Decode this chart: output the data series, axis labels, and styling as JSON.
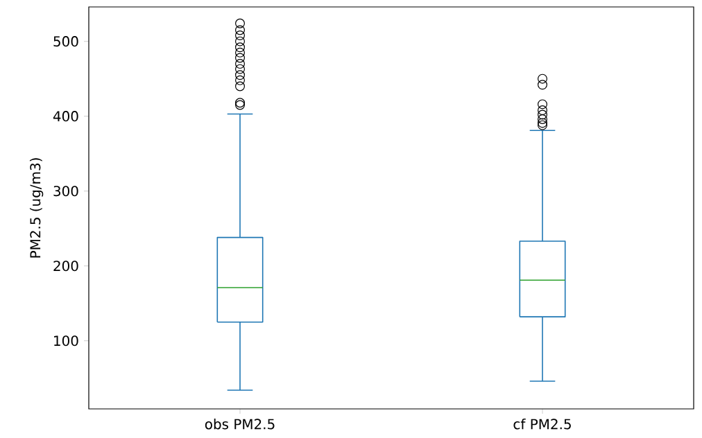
{
  "chart_data": {
    "type": "box",
    "ylabel": "PM2.5 (ug/m3)",
    "categories": [
      "obs PM2.5",
      "cf PM2.5"
    ],
    "color": "#1f77b4",
    "boxes": [
      {
        "low": 34,
        "q1": 125,
        "median": 171,
        "q3": 238,
        "high": 403,
        "outliers": [
          524,
          515,
          508,
          500,
          492,
          485,
          478,
          470,
          463,
          455,
          448,
          440,
          418,
          415
        ]
      },
      {
        "low": 46,
        "q1": 132,
        "median": 181,
        "q3": 233,
        "high": 381,
        "outliers": [
          450,
          442,
          416,
          408,
          402,
          396,
          391,
          388
        ]
      }
    ],
    "ylim": [
      9,
      546
    ],
    "yticks": [
      100,
      200,
      300,
      400,
      500
    ],
    "grid": false,
    "marker": "circle"
  }
}
